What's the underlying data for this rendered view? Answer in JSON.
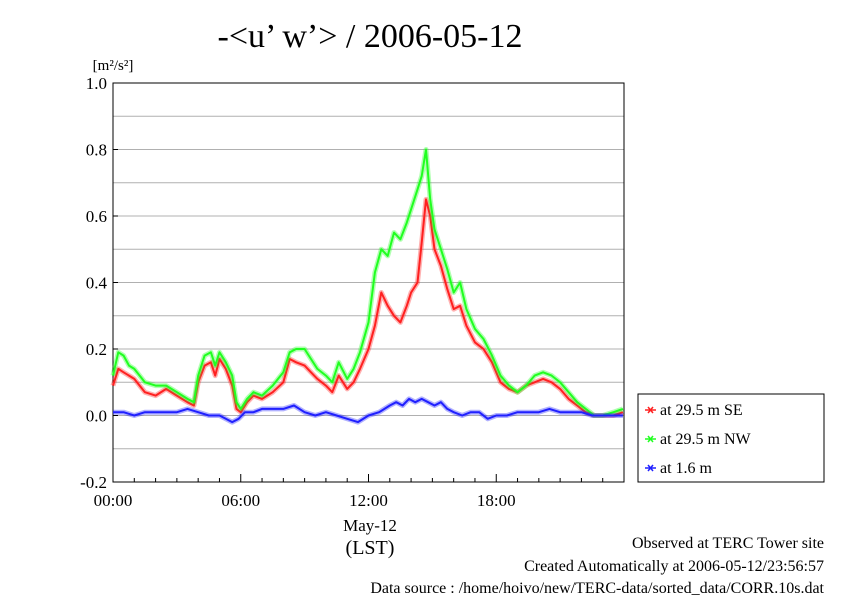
{
  "chart_data": {
    "type": "line",
    "title": "-<u’ w’> / 2006-05-12",
    "ylabel_unit": "[m²/s²]",
    "xlabel_date": "May-12",
    "xlabel_tz": "(LST)",
    "xlim_hours": [
      0,
      24
    ],
    "ylim": [
      -0.2,
      1.0
    ],
    "x_ticks": [
      {
        "hour": 0,
        "label": "00:00"
      },
      {
        "hour": 6,
        "label": "06:00"
      },
      {
        "hour": 12,
        "label": "12:00"
      },
      {
        "hour": 18,
        "label": "18:00"
      }
    ],
    "y_ticks": [
      {
        "value": -0.2,
        "label": "-0.2"
      },
      {
        "value": 0.0,
        "label": "0.0"
      },
      {
        "value": 0.2,
        "label": "0.2"
      },
      {
        "value": 0.4,
        "label": "0.4"
      },
      {
        "value": 0.6,
        "label": "0.6"
      },
      {
        "value": 0.8,
        "label": "0.8"
      },
      {
        "value": 1.0,
        "label": "1.0"
      }
    ],
    "grid": "horizontal",
    "legend_position": "right",
    "series": [
      {
        "name": "at 29.5 m SE",
        "color": "#ff2020",
        "x": [
          0,
          0.25,
          0.5,
          0.75,
          1,
          1.5,
          2,
          2.5,
          3,
          3.5,
          3.8,
          4,
          4.3,
          4.6,
          4.8,
          5,
          5.3,
          5.6,
          5.8,
          6,
          6.3,
          6.6,
          7,
          7.5,
          8,
          8.3,
          8.6,
          9,
          9.3,
          9.6,
          10,
          10.3,
          10.6,
          11,
          11.3,
          11.6,
          12,
          12.3,
          12.6,
          12.9,
          13.2,
          13.5,
          13.8,
          14.0,
          14.3,
          14.5,
          14.7,
          14.9,
          15.1,
          15.4,
          15.7,
          16.0,
          16.3,
          16.6,
          17.0,
          17.4,
          17.8,
          18.2,
          18.6,
          19.0,
          19.4,
          19.8,
          20.2,
          20.6,
          21.0,
          21.4,
          21.8,
          22.2,
          22.6,
          23.0,
          23.5,
          23.95
        ],
        "y": [
          0.09,
          0.14,
          0.13,
          0.12,
          0.11,
          0.07,
          0.06,
          0.08,
          0.06,
          0.04,
          0.03,
          0.1,
          0.15,
          0.16,
          0.12,
          0.17,
          0.14,
          0.09,
          0.02,
          0.01,
          0.04,
          0.06,
          0.05,
          0.07,
          0.1,
          0.17,
          0.16,
          0.15,
          0.13,
          0.11,
          0.09,
          0.07,
          0.12,
          0.08,
          0.1,
          0.14,
          0.2,
          0.27,
          0.37,
          0.33,
          0.3,
          0.28,
          0.33,
          0.37,
          0.4,
          0.52,
          0.65,
          0.6,
          0.5,
          0.45,
          0.38,
          0.32,
          0.33,
          0.27,
          0.22,
          0.2,
          0.16,
          0.1,
          0.08,
          0.07,
          0.09,
          0.1,
          0.11,
          0.1,
          0.08,
          0.05,
          0.03,
          0.01,
          0.0,
          0.0,
          0.0,
          0.01
        ]
      },
      {
        "name": "at 29.5 m NW",
        "color": "#20ff20",
        "x": [
          0,
          0.25,
          0.5,
          0.75,
          1,
          1.5,
          2,
          2.5,
          3,
          3.5,
          3.8,
          4,
          4.3,
          4.6,
          4.8,
          5,
          5.3,
          5.6,
          5.8,
          6,
          6.3,
          6.6,
          7,
          7.5,
          8,
          8.3,
          8.6,
          9,
          9.3,
          9.6,
          10,
          10.3,
          10.6,
          11,
          11.3,
          11.6,
          12,
          12.3,
          12.6,
          12.9,
          13.2,
          13.5,
          13.8,
          14.0,
          14.3,
          14.5,
          14.7,
          14.9,
          15.1,
          15.4,
          15.7,
          16.0,
          16.3,
          16.6,
          17.0,
          17.4,
          17.8,
          18.2,
          18.6,
          19.0,
          19.4,
          19.8,
          20.2,
          20.6,
          21.0,
          21.4,
          21.8,
          22.2,
          22.6,
          23.0,
          23.5,
          23.95
        ],
        "y": [
          0.12,
          0.19,
          0.18,
          0.15,
          0.14,
          0.1,
          0.09,
          0.09,
          0.07,
          0.05,
          0.04,
          0.12,
          0.18,
          0.19,
          0.15,
          0.19,
          0.16,
          0.12,
          0.04,
          0.02,
          0.05,
          0.07,
          0.06,
          0.09,
          0.13,
          0.19,
          0.2,
          0.2,
          0.17,
          0.14,
          0.12,
          0.1,
          0.16,
          0.11,
          0.14,
          0.19,
          0.28,
          0.43,
          0.5,
          0.48,
          0.55,
          0.53,
          0.58,
          0.62,
          0.68,
          0.72,
          0.8,
          0.65,
          0.56,
          0.5,
          0.44,
          0.37,
          0.4,
          0.32,
          0.26,
          0.23,
          0.18,
          0.12,
          0.09,
          0.07,
          0.09,
          0.12,
          0.13,
          0.12,
          0.1,
          0.07,
          0.04,
          0.02,
          0.0,
          0.0,
          0.01,
          0.02
        ]
      },
      {
        "name": "at 1.6 m",
        "color": "#2020ff",
        "x": [
          0,
          0.5,
          1,
          1.5,
          2,
          2.5,
          3,
          3.5,
          4,
          4.5,
          5,
          5.3,
          5.6,
          5.9,
          6.2,
          6.6,
          7,
          7.5,
          8,
          8.5,
          9,
          9.5,
          10,
          10.5,
          11,
          11.5,
          12,
          12.5,
          13,
          13.3,
          13.6,
          13.9,
          14.2,
          14.5,
          14.8,
          15.1,
          15.4,
          15.7,
          16,
          16.4,
          16.8,
          17.2,
          17.6,
          18,
          18.5,
          19,
          19.5,
          20,
          20.5,
          21,
          21.5,
          22,
          22.5,
          23,
          23.5,
          23.95
        ],
        "y": [
          0.01,
          0.01,
          0.0,
          0.01,
          0.01,
          0.01,
          0.01,
          0.02,
          0.01,
          0.0,
          0.0,
          -0.01,
          -0.02,
          -0.01,
          0.01,
          0.01,
          0.02,
          0.02,
          0.02,
          0.03,
          0.01,
          0.0,
          0.01,
          0.0,
          -0.01,
          -0.02,
          0.0,
          0.01,
          0.03,
          0.04,
          0.03,
          0.05,
          0.04,
          0.05,
          0.04,
          0.03,
          0.04,
          0.02,
          0.01,
          0.0,
          0.01,
          0.01,
          -0.01,
          0.0,
          0.0,
          0.01,
          0.01,
          0.01,
          0.02,
          0.01,
          0.01,
          0.01,
          0.0,
          0.0,
          0.0,
          0.0
        ]
      }
    ]
  },
  "footer": {
    "line1": "Observed at TERC Tower site",
    "line2": "Created Automatically at 2006-05-12/23:56:57",
    "line3": "Data source : /home/hoivo/new/TERC-data/sorted_data/CORR.10s.dat"
  }
}
